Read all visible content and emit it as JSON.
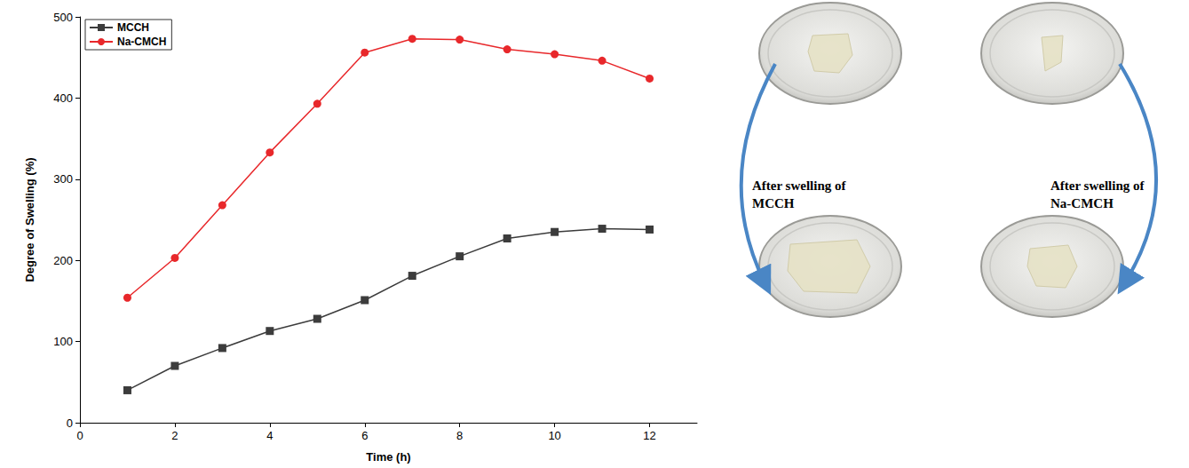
{
  "chart_data": {
    "type": "line",
    "x_label": "Time (h)",
    "y_label": "Degree of Swelling (%)",
    "x": [
      1,
      2,
      3,
      4,
      5,
      6,
      7,
      8,
      9,
      10,
      11,
      12
    ],
    "series": [
      {
        "name": "MCCH",
        "color": "#3c3c3c",
        "marker": "square",
        "line_style": "solid",
        "values": [
          40,
          70,
          92,
          113,
          128,
          151,
          181,
          205,
          227,
          235,
          239,
          238
        ]
      },
      {
        "name": "Na-CMCH",
        "color": "#e8282b",
        "marker": "circle",
        "line_style": "solid",
        "values": [
          154,
          203,
          268,
          333,
          393,
          456,
          473,
          472,
          460,
          454,
          446,
          424
        ]
      }
    ],
    "xlim": [
      0,
      13
    ],
    "xticks": [
      0,
      2,
      4,
      6,
      8,
      10,
      12
    ],
    "ylim": [
      0,
      500
    ],
    "yticks": [
      0,
      100,
      200,
      300,
      400,
      500
    ],
    "grid": false,
    "legend": "upper left"
  },
  "photo_panel": {
    "labels": [
      "After swelling of MCCH",
      "After swelling of Na-CMCH"
    ]
  }
}
